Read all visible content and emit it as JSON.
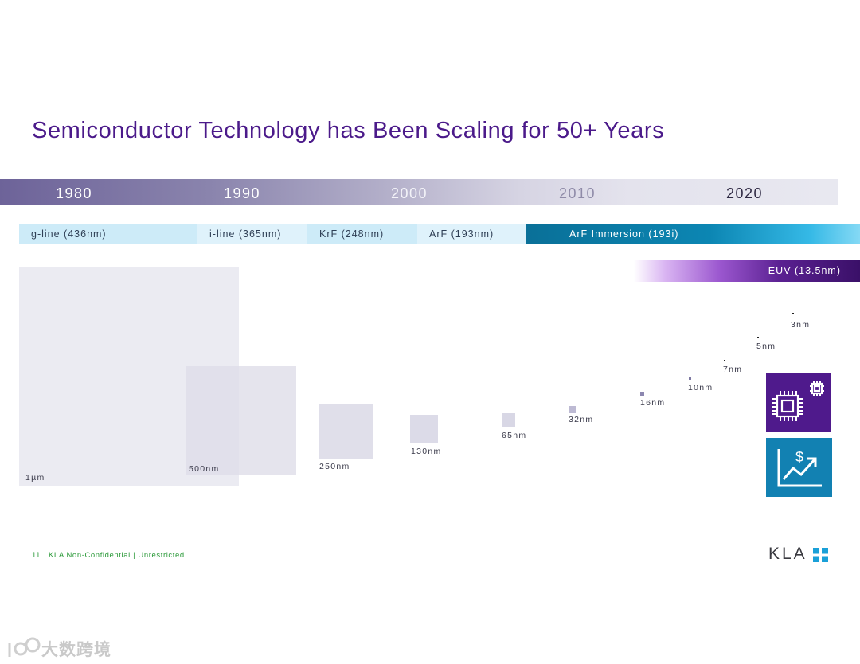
{
  "title": "Semiconductor Technology has Been Scaling for 50+ Years",
  "timeline": {
    "years": [
      "1980",
      "1990",
      "2000",
      "2010",
      "2020"
    ]
  },
  "lithography": {
    "g_line": "g-line (436nm)",
    "i_line": "i-line (365nm)",
    "krf": "KrF (248nm)",
    "arf": "ArF (193nm)",
    "arf_immersion": "ArF Immersion (193i)",
    "euv": "EUV (13.5nm)"
  },
  "nodes": {
    "n1um": "1µm",
    "n500": "500nm",
    "n250": "250nm",
    "n130": "130nm",
    "n65": "65nm",
    "n32": "32nm",
    "n16": "16nm",
    "n10": "10nm",
    "n7": "7nm",
    "n5": "5nm",
    "n3": "3nm"
  },
  "icons": {
    "chip": "microchip-icon",
    "money": "dollar-growth-chart-icon",
    "chip_color": "#4f1a8c",
    "money_color": "#1281b2"
  },
  "footer": {
    "page_number": "11",
    "classification": "KLA Non-Confidential | Unrestricted"
  },
  "logo": {
    "text": "KLA",
    "accent_color": "#1aa0d8"
  },
  "watermark": {
    "text": "大数跨境"
  }
}
